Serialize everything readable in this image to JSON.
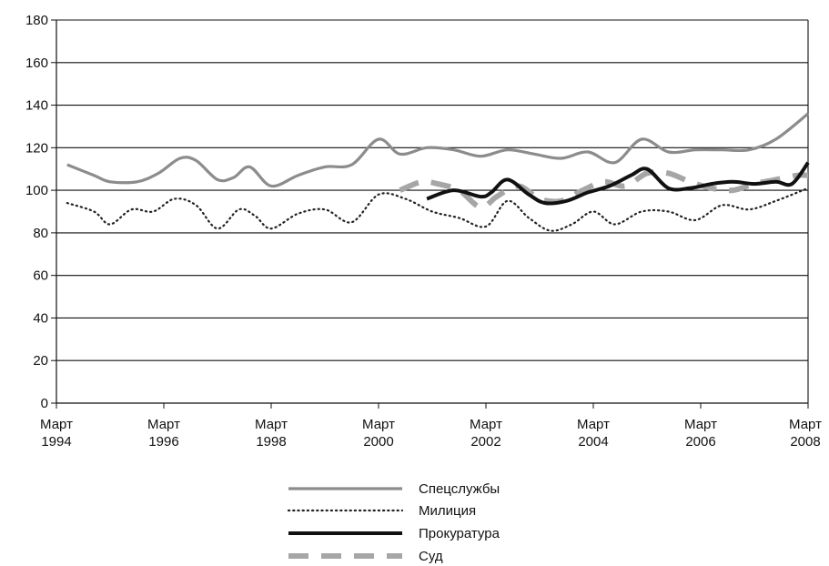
{
  "chart_data": {
    "type": "line",
    "title": "",
    "xlabel": "",
    "ylabel": "",
    "ylim": [
      0,
      180
    ],
    "yticks": [
      0,
      20,
      40,
      60,
      80,
      100,
      120,
      140,
      160,
      180
    ],
    "xlim": [
      1994.0,
      2008.0
    ],
    "xticks": [
      {
        "value": 1994,
        "line1": "Март",
        "line2": "1994"
      },
      {
        "value": 1996,
        "line1": "Март",
        "line2": "1996"
      },
      {
        "value": 1998,
        "line1": "Март",
        "line2": "1998"
      },
      {
        "value": 2000,
        "line1": "Март",
        "line2": "2000"
      },
      {
        "value": 2002,
        "line1": "Март",
        "line2": "2002"
      },
      {
        "value": 2004,
        "line1": "Март",
        "line2": "2004"
      },
      {
        "value": 2006,
        "line1": "Март",
        "line2": "2006"
      },
      {
        "value": 2008,
        "line1": "Март",
        "line2": "2008"
      }
    ],
    "grid": true,
    "legend_position": "bottom",
    "series": [
      {
        "name": "Спецслужбы",
        "color": "#8c8c8c",
        "style": "solid",
        "x": [
          1994.2,
          1994.7,
          1995.0,
          1995.5,
          1995.9,
          1996.3,
          1996.6,
          1997.0,
          1997.3,
          1997.6,
          1998.0,
          1998.5,
          1999.0,
          1999.5,
          2000.0,
          2000.4,
          2000.9,
          2001.4,
          2001.9,
          2002.4,
          2002.9,
          2003.4,
          2003.9,
          2004.4,
          2004.9,
          2005.4,
          2005.9,
          2006.4,
          2006.9,
          2007.4,
          2008.0
        ],
        "values": [
          112,
          107,
          104,
          104,
          108,
          115,
          114,
          105,
          106,
          111,
          102,
          107,
          111,
          112,
          124,
          117,
          120,
          119,
          116,
          119,
          117,
          115,
          118,
          113,
          124,
          118,
          119,
          119,
          119,
          124,
          136
        ]
      },
      {
        "name": "Милиция",
        "color": "#222222",
        "style": "dotted",
        "x": [
          1994.2,
          1994.7,
          1995.0,
          1995.4,
          1995.8,
          1996.2,
          1996.6,
          1997.0,
          1997.4,
          1997.7,
          1998.0,
          1998.5,
          1999.0,
          1999.5,
          2000.0,
          2000.5,
          2001.0,
          2001.5,
          2002.0,
          2002.4,
          2002.8,
          2003.2,
          2003.6,
          2004.0,
          2004.4,
          2004.9,
          2005.4,
          2005.9,
          2006.4,
          2006.9,
          2007.4,
          2008.0
        ],
        "values": [
          94,
          90,
          84,
          91,
          90,
          96,
          93,
          82,
          91,
          88,
          82,
          89,
          91,
          85,
          98,
          96,
          90,
          87,
          83,
          95,
          87,
          81,
          84,
          90,
          84,
          90,
          90,
          86,
          93,
          91,
          95,
          101
        ]
      },
      {
        "name": "Прокуратура",
        "color": "#111111",
        "style": "solid-thick",
        "x": [
          2000.9,
          2001.4,
          2001.9,
          2002.1,
          2002.4,
          2002.8,
          2003.1,
          2003.5,
          2003.9,
          2004.3,
          2004.7,
          2005.0,
          2005.4,
          2005.8,
          2006.2,
          2006.6,
          2007.0,
          2007.4,
          2007.7,
          2008.0
        ],
        "values": [
          96,
          100,
          97,
          99,
          105,
          98,
          94,
          95,
          99,
          102,
          107,
          110,
          101,
          101,
          103,
          104,
          103,
          104,
          103,
          113
        ]
      },
      {
        "name": "Суд",
        "color": "#a6a6a6",
        "style": "dashed-thick",
        "x": [
          2000.4,
          2000.8,
          2001.1,
          2001.5,
          2001.9,
          2002.2,
          2002.6,
          2003.0,
          2003.4,
          2003.8,
          2004.2,
          2004.6,
          2005.0,
          2005.4,
          2005.8,
          2006.2,
          2006.6,
          2007.0,
          2007.4,
          2007.8,
          2008.0
        ],
        "values": [
          100,
          104,
          103,
          100,
          92,
          97,
          102,
          96,
          95,
          100,
          104,
          102,
          108,
          108,
          104,
          101,
          100,
          103,
          105,
          107,
          107
        ]
      }
    ]
  }
}
